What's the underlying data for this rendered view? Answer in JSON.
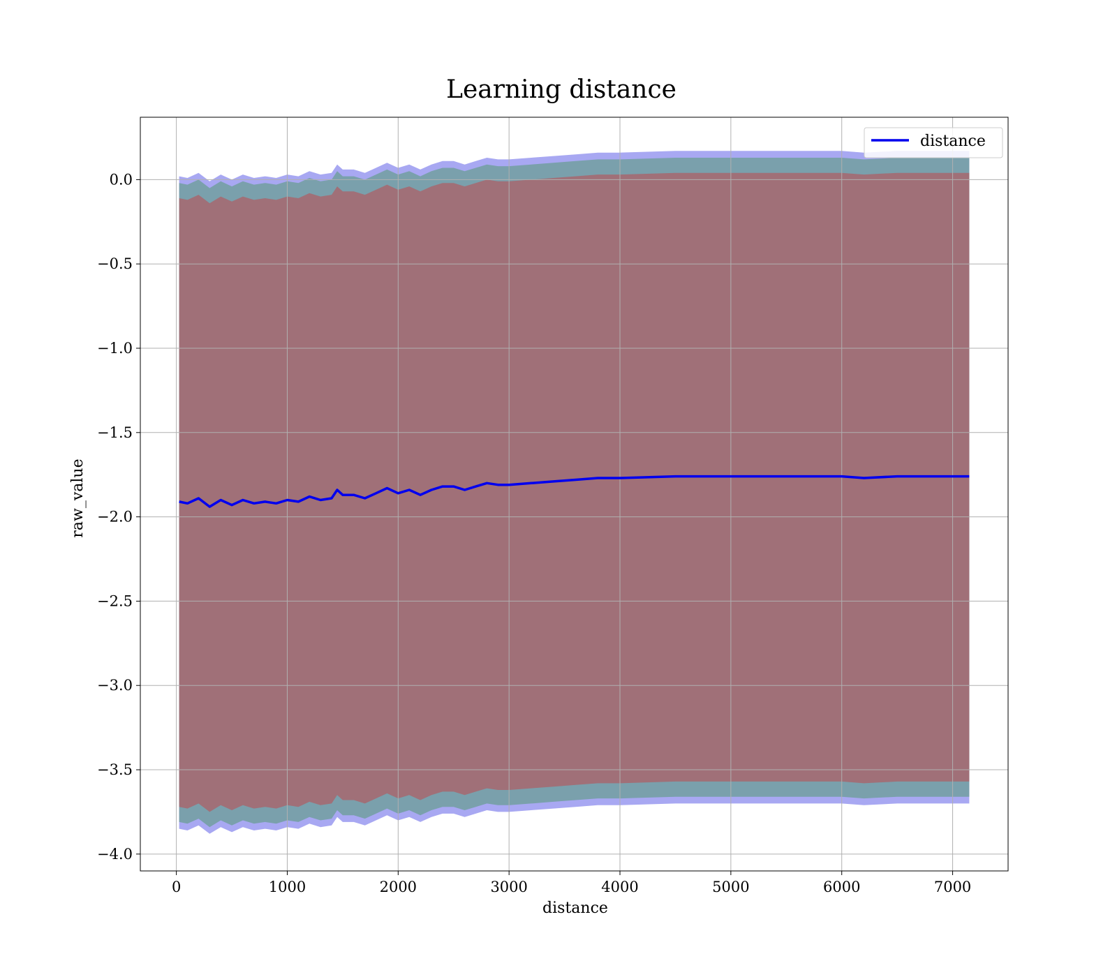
{
  "chart_data": {
    "type": "line",
    "title": "Learning distance",
    "xlabel": "distance",
    "ylabel": "raw_value",
    "xlim": [
      -325,
      7500
    ],
    "ylim": [
      -4.1,
      0.37
    ],
    "xticks": [
      0,
      1000,
      2000,
      3000,
      4000,
      5000,
      6000,
      7000
    ],
    "xtick_labels": [
      "0",
      "1000",
      "2000",
      "3000",
      "4000",
      "5000",
      "6000",
      "7000"
    ],
    "yticks": [
      0.0,
      -0.5,
      -1.0,
      -1.5,
      -2.0,
      -2.5,
      -3.0,
      -3.5,
      -4.0
    ],
    "ytick_labels": [
      "0.0",
      "−0.5",
      "−1.0",
      "−1.5",
      "−2.0",
      "−2.5",
      "−3.0",
      "−3.5",
      "−4.0"
    ],
    "grid": true,
    "legend": {
      "placement": "top-right",
      "entries": [
        "distance"
      ]
    },
    "colors": {
      "line": "#0000ee",
      "outer_band": "#a8a8f2",
      "middle_band": "#7aa0ac",
      "inner_band": "#a07078"
    },
    "series": [
      {
        "name": "distance",
        "x": [
          25,
          100,
          200,
          300,
          400,
          500,
          600,
          700,
          800,
          900,
          1000,
          1100,
          1200,
          1300,
          1400,
          1450,
          1500,
          1600,
          1700,
          1800,
          1900,
          2000,
          2100,
          2200,
          2300,
          2400,
          2500,
          2600,
          2700,
          2800,
          2900,
          3000,
          3200,
          3400,
          3600,
          3800,
          4000,
          4500,
          5000,
          5500,
          6000,
          6200,
          6500,
          7000,
          7150
        ],
        "y": [
          -1.91,
          -1.92,
          -1.89,
          -1.94,
          -1.9,
          -1.93,
          -1.9,
          -1.92,
          -1.91,
          -1.92,
          -1.9,
          -1.91,
          -1.88,
          -1.9,
          -1.89,
          -1.84,
          -1.87,
          -1.87,
          -1.89,
          -1.86,
          -1.83,
          -1.86,
          -1.84,
          -1.87,
          -1.84,
          -1.82,
          -1.82,
          -1.84,
          -1.82,
          -1.8,
          -1.81,
          -1.81,
          -1.8,
          -1.79,
          -1.78,
          -1.77,
          -1.77,
          -1.76,
          -1.76,
          -1.76,
          -1.76,
          -1.77,
          -1.76,
          -1.76,
          -1.76
        ]
      }
    ],
    "bands": [
      {
        "offset_upper": 1.93,
        "offset_lower": 1.94
      },
      {
        "offset_upper": 1.89,
        "offset_lower": 1.9
      },
      {
        "offset_upper": 1.8,
        "offset_lower": 1.81
      }
    ]
  }
}
